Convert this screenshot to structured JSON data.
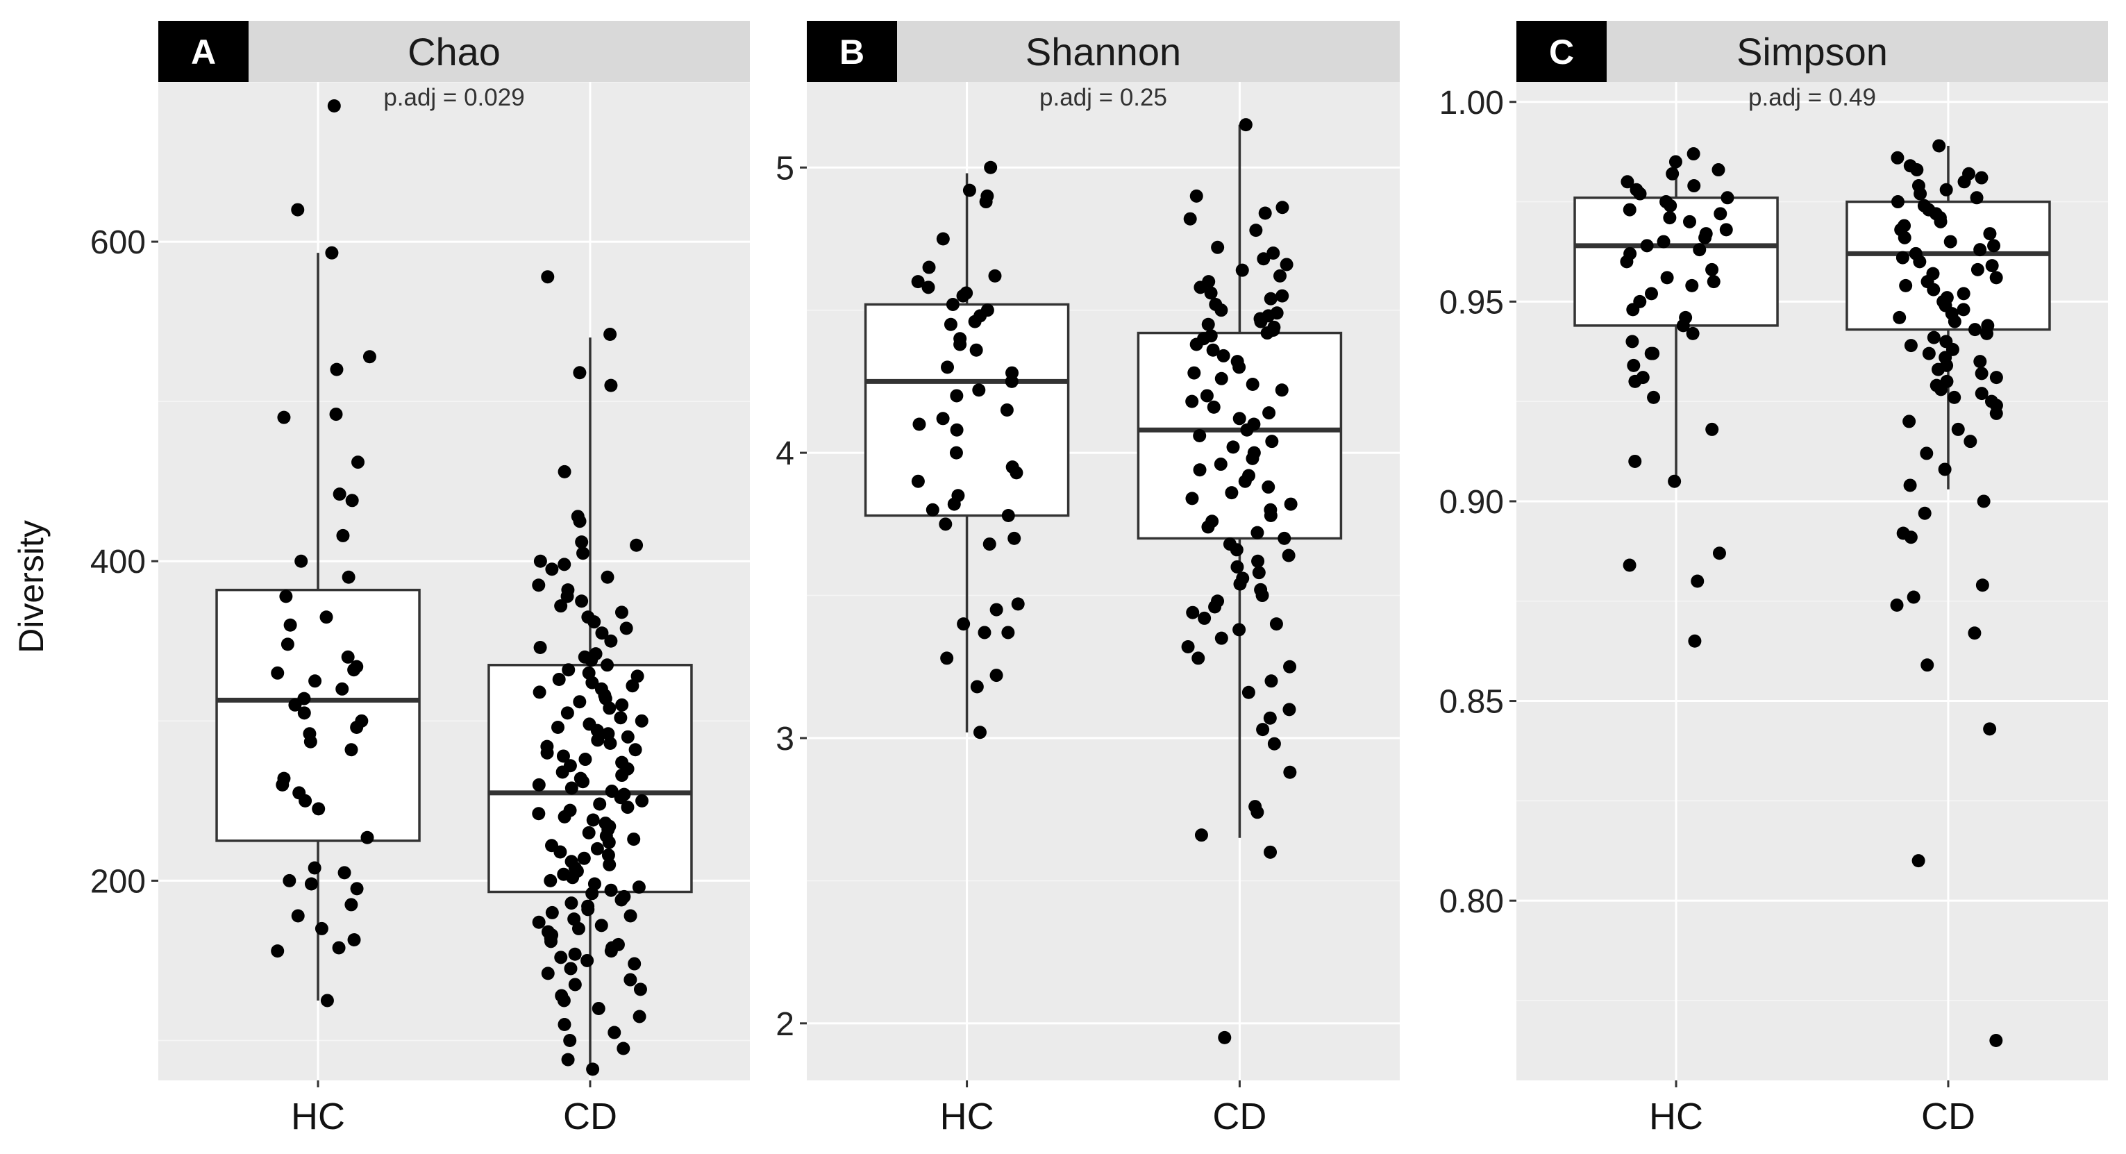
{
  "chart_data": {
    "type": "box",
    "y_axis_title": "Diversity",
    "groups": [
      "HC",
      "CD"
    ],
    "panels": [
      {
        "tag": "A",
        "title": "Chao",
        "annotation": "p.adj = 0.029",
        "ylim": [
          75,
          700
        ],
        "yticks": [
          200,
          400,
          600
        ],
        "ytick_labels": [
          "200",
          "400",
          "600"
        ],
        "boxes": [
          {
            "group": "HC",
            "q1": 225,
            "median": 313,
            "q3": 382,
            "whisker_low": 125,
            "whisker_high": 593
          },
          {
            "group": "CD",
            "q1": 193,
            "median": 255,
            "q3": 335,
            "whisker_low": 82,
            "whisker_high": 540
          }
        ],
        "points": {
          "HC": [
            685,
            620,
            593,
            528,
            520,
            492,
            490,
            462,
            442,
            438,
            416,
            400,
            390,
            378,
            365,
            360,
            348,
            340,
            334,
            332,
            330,
            325,
            320,
            314,
            310,
            305,
            300,
            296,
            292,
            287,
            282,
            264,
            260,
            255,
            250,
            245,
            227,
            208,
            205,
            200,
            198,
            195,
            185,
            178,
            170,
            163,
            158,
            156,
            125
          ],
          "CD": [
            578,
            542,
            518,
            510,
            456,
            428,
            425,
            412,
            410,
            405,
            400,
            398,
            395,
            390,
            385,
            382,
            378,
            375,
            372,
            368,
            365,
            362,
            358,
            355,
            350,
            346,
            342,
            340,
            338,
            335,
            332,
            330,
            328,
            326,
            324,
            322,
            320,
            318,
            316,
            314,
            312,
            310,
            308,
            305,
            302,
            300,
            298,
            296,
            294,
            292,
            290,
            288,
            286,
            284,
            282,
            280,
            278,
            276,
            274,
            272,
            270,
            268,
            266,
            264,
            262,
            260,
            258,
            256,
            254,
            252,
            250,
            248,
            246,
            244,
            242,
            240,
            238,
            236,
            234,
            232,
            230,
            228,
            226,
            224,
            222,
            220,
            218,
            216,
            214,
            212,
            210,
            208,
            206,
            204,
            202,
            200,
            198,
            196,
            194,
            192,
            190,
            188,
            186,
            184,
            182,
            180,
            178,
            176,
            174,
            172,
            170,
            168,
            166,
            164,
            162,
            160,
            158,
            156,
            154,
            152,
            150,
            148,
            145,
            142,
            138,
            135,
            132,
            128,
            125,
            120,
            115,
            110,
            105,
            100,
            95,
            88,
            82
          ]
        }
      },
      {
        "tag": "B",
        "title": "Shannon",
        "annotation": "p.adj = 0.25",
        "ylim": [
          1.8,
          5.3
        ],
        "yticks": [
          2,
          3,
          4,
          5
        ],
        "ytick_labels": [
          "2",
          "3",
          "4",
          "5"
        ],
        "boxes": [
          {
            "group": "HC",
            "q1": 3.78,
            "median": 4.25,
            "q3": 4.52,
            "whisker_low": 3.02,
            "whisker_high": 4.98
          },
          {
            "group": "CD",
            "q1": 3.7,
            "median": 4.08,
            "q3": 4.42,
            "whisker_low": 2.65,
            "whisker_high": 5.15
          }
        ],
        "points": {
          "HC": [
            5.0,
            4.92,
            4.9,
            4.88,
            4.75,
            4.65,
            4.62,
            4.6,
            4.58,
            4.56,
            4.55,
            4.52,
            4.5,
            4.48,
            4.46,
            4.45,
            4.4,
            4.38,
            4.36,
            4.3,
            4.28,
            4.25,
            4.22,
            4.2,
            4.15,
            4.12,
            4.1,
            4.08,
            4.0,
            3.95,
            3.93,
            3.9,
            3.85,
            3.82,
            3.8,
            3.78,
            3.75,
            3.7,
            3.68,
            3.47,
            3.45,
            3.4,
            3.37,
            3.37,
            3.28,
            3.22,
            3.18,
            3.02
          ],
          "CD": [
            5.15,
            4.9,
            4.86,
            4.84,
            4.82,
            4.78,
            4.72,
            4.7,
            4.68,
            4.66,
            4.64,
            4.62,
            4.6,
            4.58,
            4.56,
            4.55,
            4.54,
            4.52,
            4.5,
            4.49,
            4.48,
            4.47,
            4.46,
            4.45,
            4.44,
            4.43,
            4.42,
            4.41,
            4.4,
            4.38,
            4.36,
            4.34,
            4.32,
            4.3,
            4.28,
            4.26,
            4.24,
            4.22,
            4.2,
            4.18,
            4.16,
            4.14,
            4.12,
            4.1,
            4.08,
            4.06,
            4.04,
            4.02,
            4.0,
            3.98,
            3.96,
            3.94,
            3.92,
            3.9,
            3.88,
            3.86,
            3.84,
            3.82,
            3.8,
            3.78,
            3.76,
            3.74,
            3.72,
            3.7,
            3.68,
            3.66,
            3.64,
            3.62,
            3.6,
            3.58,
            3.56,
            3.54,
            3.52,
            3.5,
            3.48,
            3.46,
            3.44,
            3.42,
            3.4,
            3.38,
            3.35,
            3.32,
            3.28,
            3.25,
            3.2,
            3.16,
            3.1,
            3.07,
            3.03,
            2.98,
            2.88,
            2.76,
            2.74,
            2.66,
            2.6,
            1.95
          ]
        }
      },
      {
        "tag": "C",
        "title": "Simpson",
        "annotation": "p.adj = 0.49",
        "ylim": [
          0.755,
          1.005
        ],
        "yticks": [
          0.8,
          0.85,
          0.9,
          0.95,
          1.0
        ],
        "ytick_labels": [
          "0.80",
          "0.85",
          "0.90",
          "0.95",
          "1.00"
        ],
        "boxes": [
          {
            "group": "HC",
            "q1": 0.944,
            "median": 0.964,
            "q3": 0.976,
            "whisker_low": 0.905,
            "whisker_high": 0.986
          },
          {
            "group": "CD",
            "q1": 0.943,
            "median": 0.962,
            "q3": 0.975,
            "whisker_low": 0.903,
            "whisker_high": 0.989
          }
        ],
        "points": {
          "HC": [
            0.987,
            0.985,
            0.983,
            0.982,
            0.98,
            0.979,
            0.978,
            0.977,
            0.976,
            0.975,
            0.974,
            0.973,
            0.972,
            0.971,
            0.97,
            0.968,
            0.967,
            0.966,
            0.965,
            0.964,
            0.963,
            0.962,
            0.96,
            0.958,
            0.956,
            0.955,
            0.954,
            0.952,
            0.95,
            0.948,
            0.946,
            0.944,
            0.942,
            0.94,
            0.937,
            0.937,
            0.934,
            0.931,
            0.93,
            0.926,
            0.918,
            0.91,
            0.905,
            0.887,
            0.884,
            0.88,
            0.865
          ],
          "CD": [
            0.989,
            0.986,
            0.984,
            0.983,
            0.982,
            0.981,
            0.98,
            0.979,
            0.978,
            0.977,
            0.976,
            0.975,
            0.974,
            0.973,
            0.972,
            0.971,
            0.97,
            0.969,
            0.968,
            0.967,
            0.966,
            0.965,
            0.964,
            0.963,
            0.962,
            0.961,
            0.96,
            0.959,
            0.958,
            0.957,
            0.956,
            0.955,
            0.954,
            0.953,
            0.952,
            0.951,
            0.95,
            0.949,
            0.948,
            0.947,
            0.946,
            0.945,
            0.944,
            0.943,
            0.942,
            0.941,
            0.94,
            0.939,
            0.938,
            0.937,
            0.936,
            0.935,
            0.934,
            0.933,
            0.932,
            0.931,
            0.93,
            0.929,
            0.928,
            0.927,
            0.926,
            0.925,
            0.924,
            0.922,
            0.92,
            0.918,
            0.915,
            0.912,
            0.908,
            0.904,
            0.9,
            0.897,
            0.892,
            0.891,
            0.879,
            0.876,
            0.874,
            0.867,
            0.859,
            0.843,
            0.81,
            0.765
          ]
        }
      }
    ]
  }
}
